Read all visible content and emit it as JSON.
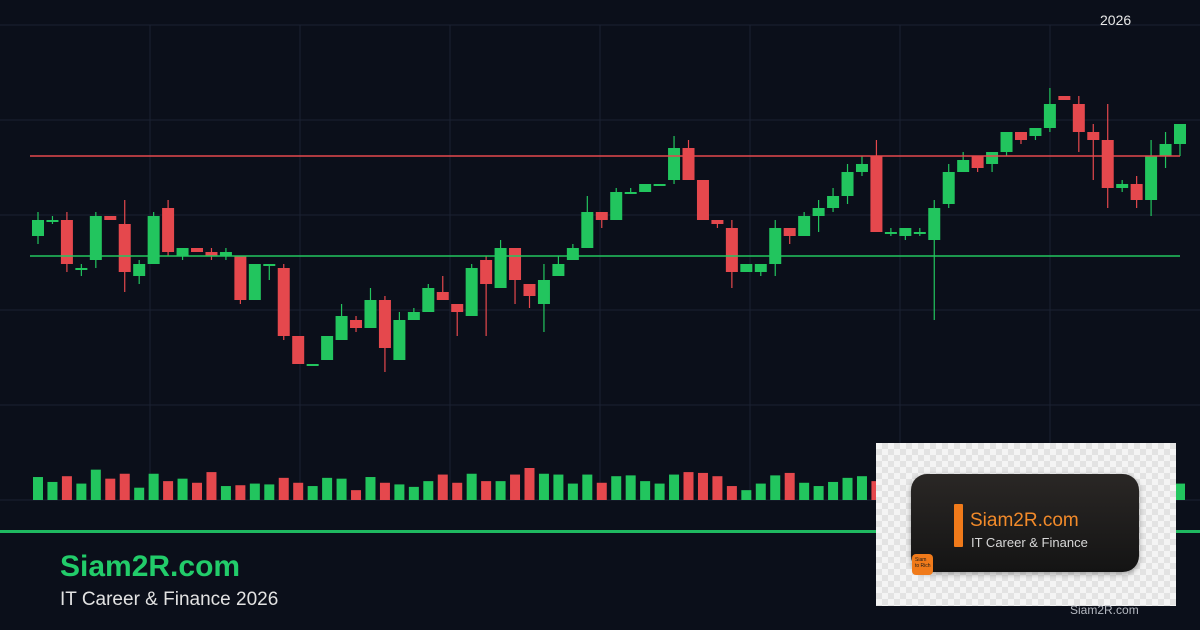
{
  "chart_data": {
    "type": "candlestick",
    "title": "",
    "xlabel": "",
    "ylabel": "",
    "ylim": [
      0,
      100
    ],
    "grid": true,
    "colors": {
      "up": "#22c55e",
      "down": "#e5484d",
      "resistance": "#e5484d",
      "support": "#22c55e",
      "grid": "#1b2232",
      "background": "#0b0f1a"
    },
    "resistance_level": 71,
    "support_level": 46,
    "candles": [
      [
        51,
        55,
        57,
        49,
        28
      ],
      [
        55,
        55,
        56,
        54,
        22
      ],
      [
        55,
        44,
        57,
        42,
        29
      ],
      [
        43,
        43,
        44,
        41,
        20
      ],
      [
        45,
        56,
        57,
        43,
        37
      ],
      [
        56,
        55,
        56,
        55,
        26
      ],
      [
        54,
        42,
        60,
        37,
        32
      ],
      [
        41,
        44,
        45,
        39,
        15
      ],
      [
        44,
        56,
        57,
        45,
        32
      ],
      [
        58,
        47,
        60,
        46,
        23
      ],
      [
        46,
        48,
        48,
        45,
        26
      ],
      [
        48,
        47,
        47,
        47,
        21
      ],
      [
        47,
        46,
        48,
        45,
        34
      ],
      [
        46,
        47,
        48,
        45,
        17
      ],
      [
        46,
        35,
        45,
        34,
        18
      ],
      [
        35,
        44,
        44,
        36,
        20
      ],
      [
        44,
        44,
        44,
        40,
        19
      ],
      [
        43,
        26,
        44,
        25,
        27
      ],
      [
        26,
        19,
        26,
        19,
        21
      ],
      [
        19,
        19,
        19,
        19,
        17
      ],
      [
        20,
        26,
        26,
        21,
        27
      ],
      [
        25,
        31,
        34,
        29,
        26
      ],
      [
        30,
        28,
        31,
        27,
        12
      ],
      [
        28,
        35,
        38,
        32,
        28
      ],
      [
        35,
        23,
        36,
        17,
        21
      ],
      [
        20,
        30,
        32,
        27,
        19
      ],
      [
        30,
        32,
        33,
        31,
        16
      ],
      [
        32,
        38,
        39,
        34,
        23
      ],
      [
        37,
        35,
        41,
        35,
        31
      ],
      [
        34,
        32,
        33,
        26,
        21
      ],
      [
        31,
        43,
        44,
        31,
        32
      ],
      [
        45,
        39,
        46,
        26,
        23
      ],
      [
        38,
        48,
        50,
        40,
        23
      ],
      [
        48,
        40,
        48,
        34,
        31
      ],
      [
        39,
        36,
        38,
        33,
        39
      ],
      [
        34,
        40,
        44,
        27,
        32
      ],
      [
        41,
        44,
        46,
        44,
        31
      ],
      [
        45,
        48,
        49,
        47,
        20
      ],
      [
        48,
        57,
        61,
        55,
        31
      ],
      [
        57,
        55,
        56,
        53,
        21
      ],
      [
        55,
        62,
        63,
        57,
        29
      ],
      [
        62,
        62,
        63,
        62,
        30
      ],
      [
        62,
        64,
        64,
        64,
        23
      ],
      [
        64,
        64,
        64,
        64,
        20
      ],
      [
        65,
        73,
        76,
        64,
        31
      ],
      [
        73,
        65,
        75,
        65,
        34
      ],
      [
        65,
        55,
        65,
        55,
        33
      ],
      [
        55,
        54,
        55,
        53,
        29
      ],
      [
        53,
        42,
        55,
        38,
        17
      ],
      [
        42,
        44,
        44,
        43,
        12
      ],
      [
        42,
        44,
        44,
        41,
        20
      ],
      [
        44,
        53,
        55,
        41,
        30
      ],
      [
        53,
        51,
        53,
        49,
        33
      ],
      [
        51,
        56,
        57,
        52,
        21
      ],
      [
        56,
        58,
        60,
        52,
        17
      ],
      [
        58,
        61,
        63,
        57,
        22
      ],
      [
        61,
        67,
        69,
        59,
        27
      ],
      [
        67,
        69,
        71,
        66,
        29
      ],
      [
        71,
        52,
        75,
        52,
        23
      ],
      [
        52,
        52,
        53,
        51,
        15
      ],
      [
        51,
        53,
        53,
        50,
        22
      ],
      [
        52,
        52,
        53,
        51,
        24
      ],
      [
        50,
        58,
        60,
        30,
        28
      ],
      [
        59,
        67,
        69,
        58,
        17
      ],
      [
        67,
        70,
        72,
        68,
        24
      ],
      [
        71,
        68,
        70,
        67,
        32
      ],
      [
        69,
        72,
        72,
        67,
        30
      ],
      [
        72,
        77,
        77,
        71,
        34
      ],
      [
        77,
        75,
        77,
        74,
        24
      ],
      [
        76,
        78,
        78,
        75,
        27
      ],
      [
        78,
        84,
        88,
        77,
        33
      ],
      [
        86,
        85,
        85,
        85,
        28
      ],
      [
        84,
        77,
        86,
        72,
        25
      ],
      [
        77,
        75,
        79,
        65,
        21
      ],
      [
        75,
        63,
        84,
        58,
        19
      ],
      [
        63,
        64,
        65,
        62,
        15
      ],
      [
        64,
        60,
        66,
        58,
        18
      ],
      [
        60,
        71,
        75,
        56,
        20
      ],
      [
        71,
        74,
        77,
        68,
        26
      ],
      [
        74,
        79,
        79,
        71,
        20
      ]
    ]
  },
  "header": {
    "year_label": "2026"
  },
  "brand": {
    "title": "Siam2R.com",
    "subtitle": "IT Career & Finance 2026"
  },
  "logo": {
    "title": "Siam2R.com",
    "subtitle": "IT Career & Finance",
    "badge_line1": "Siam",
    "badge_line2": "to Rich",
    "watermark": "Siam2R.com"
  }
}
